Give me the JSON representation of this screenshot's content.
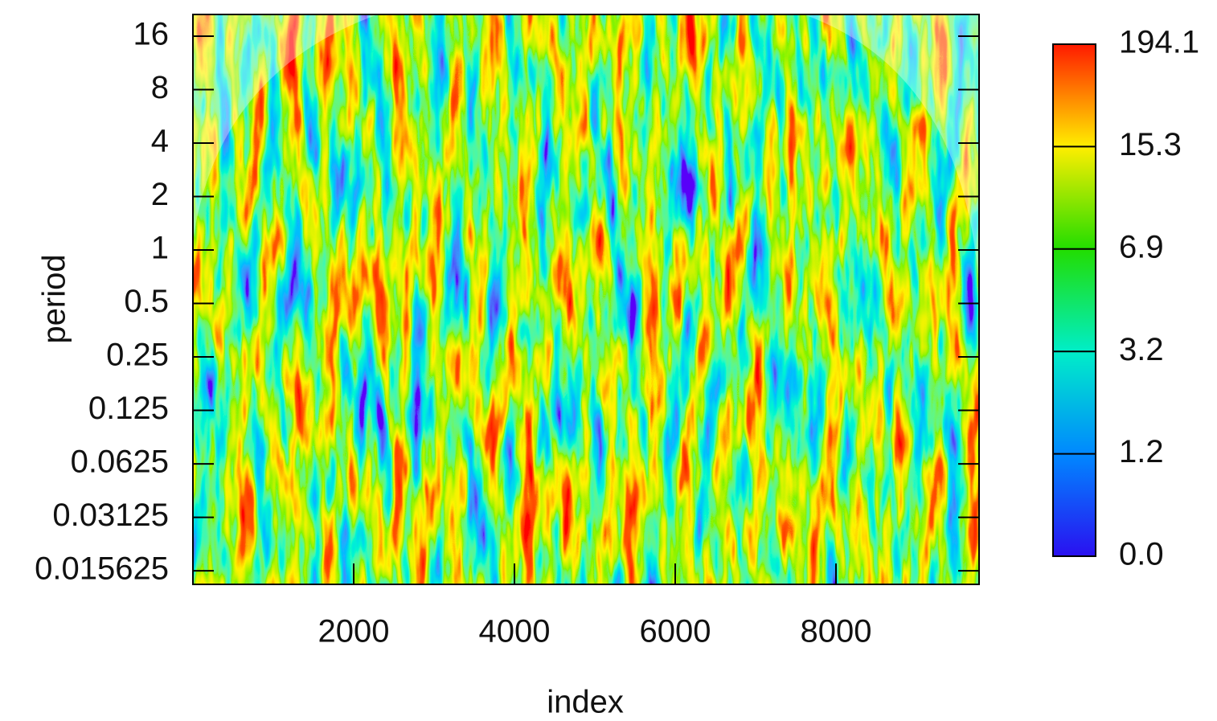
{
  "chart_data": {
    "type": "heatmap",
    "x_label": "index",
    "y_label": "period",
    "xlim": [
      0,
      9780
    ],
    "xticks": [
      2000,
      4000,
      6000,
      8000
    ],
    "ylim": [
      0.0131,
      21.2
    ],
    "ylog": true,
    "yticks": [
      16,
      8,
      4,
      2,
      1,
      0.5,
      0.25,
      0.125,
      0.0625,
      0.03125,
      0.015625
    ],
    "colorbar": {
      "ticks": [
        {
          "value": 0,
          "label": "0.0"
        },
        1.2,
        3.2,
        6.9,
        15.3,
        194.1
      ],
      "colors": [
        "#2a10f0",
        "#0088ff",
        "#00eec8",
        "#22dd00",
        "#ffee00",
        "#ff1a00"
      ]
    }
  }
}
